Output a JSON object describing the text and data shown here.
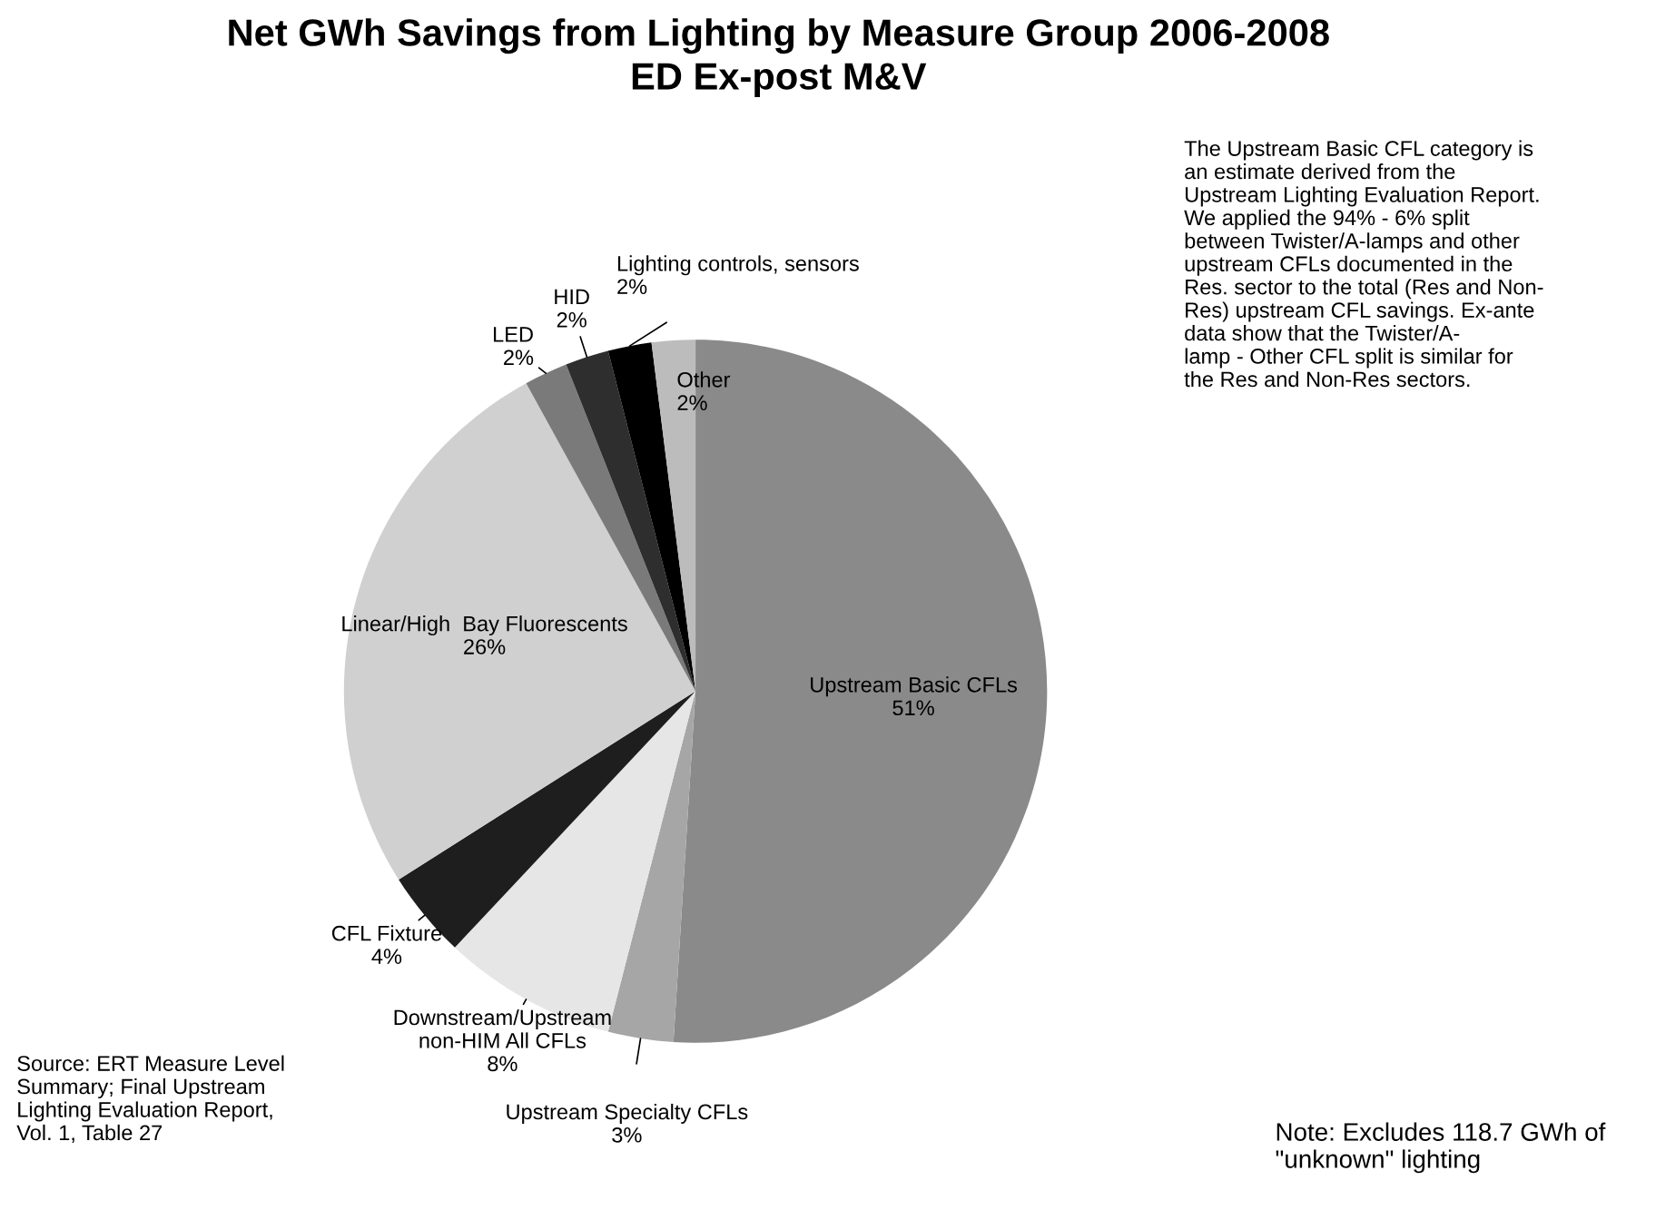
{
  "chart_data": {
    "type": "pie",
    "title": "Net GWh Savings from Lighting by Measure Group 2006-2008\nED Ex-post M&V",
    "categories": [
      "Upstream Basic CFLs",
      "Upstream Specialty CFLs",
      "Downstream/Upstream\nnon-HIM All CFLs",
      "CFL Fixture",
      "Linear/High  Bay Fluorescents",
      "LED",
      "HID",
      "Lighting controls, sensors",
      "Other"
    ],
    "values": [
      51,
      3,
      8,
      4,
      26,
      2,
      2,
      2,
      2
    ],
    "value_labels": [
      "51%",
      "3%",
      "8%",
      "4%",
      "26%",
      "2%",
      "2%",
      "2%",
      "2%"
    ],
    "colors": [
      "#8a8a8a",
      "#a6a6a6",
      "#e6e6e6",
      "#1e1e1e",
      "#d0d0d0",
      "#7a7a7a",
      "#2e2e2e",
      "#000000",
      "#bcbcbc"
    ],
    "annotations": [
      "The Upstream Basic CFL category is\nan estimate derived from the\nUpstream Lighting Evaluation Report.\nWe applied the 94% - 6% split\nbetween Twister/A-lamps and other\nupstream CFLs documented in the\nRes. sector to the total (Res and Non-\nRes) upstream CFL savings. Ex-ante\ndata show that the Twister/A-\nlamp - Other CFL split is similar for\nthe Res and Non-Res sectors.",
      "Source: ERT Measure Level\nSummary; Final Upstream\nLighting Evaluation Report,\nVol. 1, Table 27",
      "Note: Excludes 118.7 GWh of\n\"unknown\" lighting"
    ]
  }
}
